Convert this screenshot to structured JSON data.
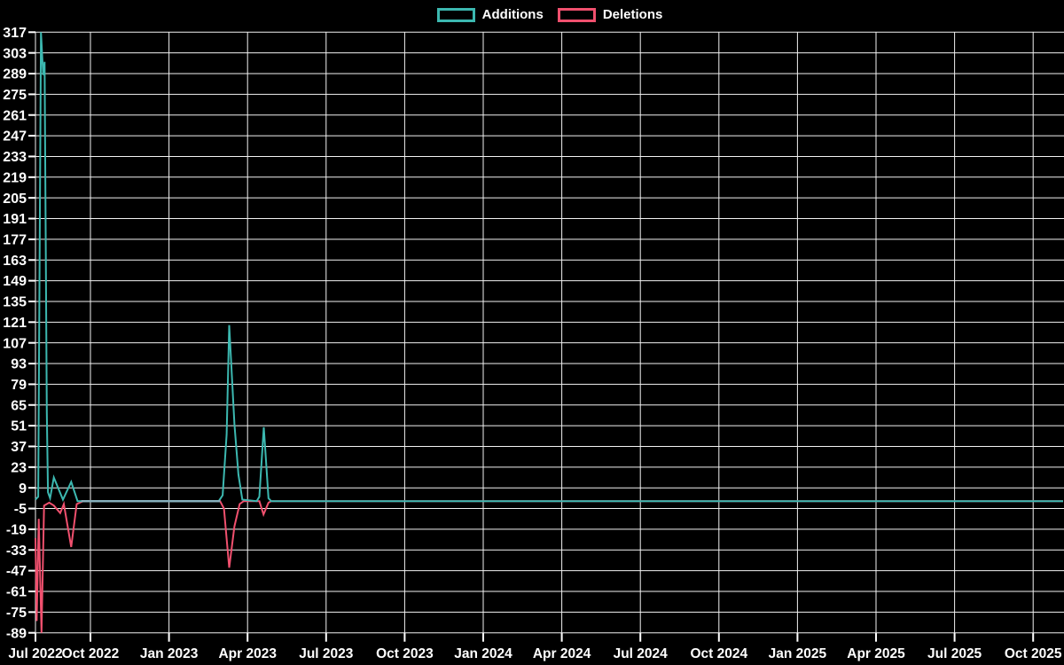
{
  "legend": {
    "items": [
      {
        "label": "Additions",
        "color": "#3cb8b0"
      },
      {
        "label": "Deletions",
        "color": "#f0506e"
      }
    ]
  },
  "chart_data": {
    "type": "line",
    "title": "",
    "xlabel": "",
    "ylabel": "",
    "background_color": "#000000",
    "gridline_color": "#f2f2f2",
    "text_color": "#ffffff",
    "grid": true,
    "legend_position": "top-center",
    "x_axis": {
      "unit": "months since Jul 2022",
      "tick_labels": [
        "Jul 2022",
        "Oct 2022",
        "Jan 2023",
        "Apr 2023",
        "Jul 2023",
        "Oct 2023",
        "Jan 2024",
        "Apr 2024",
        "Jul 2024",
        "Oct 2024",
        "Jan 2025",
        "Apr 2025",
        "Jul 2025",
        "Oct 2025"
      ],
      "tick_step_months": 3
    },
    "y_axis": {
      "min": -89,
      "max": 317,
      "step": 14,
      "tick_labels": [
        317,
        303,
        289,
        275,
        261,
        247,
        233,
        219,
        205,
        191,
        177,
        163,
        149,
        135,
        121,
        107,
        93,
        79,
        65,
        51,
        37,
        23,
        9,
        -5,
        -19,
        -33,
        -47,
        -61,
        -75,
        -89
      ]
    },
    "series": [
      {
        "name": "Additions",
        "color": "#3cb8b0",
        "points": [
          [
            0,
            1
          ],
          [
            0.15,
            3
          ],
          [
            0.3,
            317
          ],
          [
            0.42,
            288
          ],
          [
            0.5,
            297
          ],
          [
            0.62,
            60
          ],
          [
            0.68,
            6
          ],
          [
            0.8,
            2
          ],
          [
            1,
            16
          ],
          [
            1.5,
            1
          ],
          [
            1.95,
            13
          ],
          [
            2.3,
            0
          ],
          [
            7.9,
            0
          ],
          [
            8.05,
            4
          ],
          [
            8.2,
            45
          ],
          [
            8.3,
            119
          ],
          [
            8.5,
            52
          ],
          [
            8.65,
            18
          ],
          [
            8.8,
            1
          ],
          [
            9.35,
            0
          ],
          [
            9.45,
            3
          ],
          [
            9.62,
            50
          ],
          [
            9.8,
            2
          ],
          [
            9.9,
            0
          ],
          [
            40.2,
            0
          ]
        ]
      },
      {
        "name": "Deletions",
        "color": "#f0506e",
        "points": [
          [
            0,
            -25
          ],
          [
            0.07,
            -81
          ],
          [
            0.18,
            -12
          ],
          [
            0.33,
            -89
          ],
          [
            0.47,
            -3
          ],
          [
            0.75,
            -1
          ],
          [
            1,
            -3
          ],
          [
            1.35,
            -8
          ],
          [
            1.55,
            -2
          ],
          [
            1.95,
            -31
          ],
          [
            2.25,
            -2
          ],
          [
            2.6,
            0
          ],
          [
            7.95,
            0
          ],
          [
            8.1,
            -5
          ],
          [
            8.3,
            -45
          ],
          [
            8.5,
            -17
          ],
          [
            8.7,
            -2
          ],
          [
            8.85,
            0
          ],
          [
            9.45,
            0
          ],
          [
            9.61,
            -9
          ],
          [
            9.8,
            -1
          ],
          [
            9.9,
            0
          ],
          [
            40.2,
            0
          ]
        ]
      }
    ],
    "overlap_flat_color": "#86b0bd"
  }
}
